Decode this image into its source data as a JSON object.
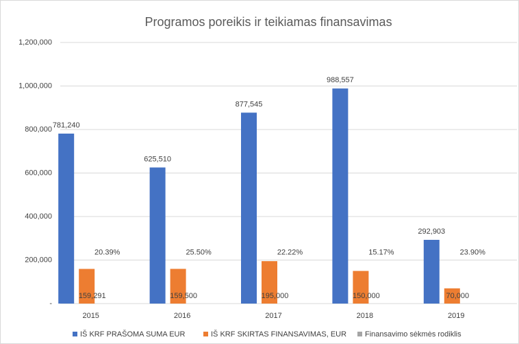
{
  "chart_data": {
    "type": "bar",
    "title": "Programos poreikis ir teikiamas finansavimas",
    "categories": [
      "2015",
      "2016",
      "2017",
      "2018",
      "2019"
    ],
    "series": [
      {
        "name": "IŠ KRF PRAŠOMA SUMA EUR",
        "color": "#4472c4",
        "values": [
          781240,
          625510,
          877545,
          988557,
          292903
        ],
        "value_labels": [
          "781,240",
          "625,510",
          "877,545",
          "988,557",
          "292,903"
        ]
      },
      {
        "name": "IŠ KRF SKIRTAS FINANSAVIMAS, EUR",
        "color": "#ed7d31",
        "values": [
          159291,
          159500,
          195000,
          150000,
          70000
        ],
        "value_labels": [
          "159,291",
          "159,500",
          "195,000",
          "150,000",
          "70,000"
        ]
      },
      {
        "name": "Finansavimo sėkmės rodiklis",
        "color": "#a5a5a5",
        "values": [
          20.39,
          25.5,
          22.22,
          15.17,
          23.9
        ],
        "value_labels": [
          "20.39%",
          "25.50%",
          "22.22%",
          "15.17%",
          "23.90%"
        ]
      }
    ],
    "ylim": [
      0,
      1200000
    ],
    "yticks": [
      {
        "value": 0,
        "label": "-"
      },
      {
        "value": 200000,
        "label": "200,000"
      },
      {
        "value": 400000,
        "label": "400,000"
      },
      {
        "value": 600000,
        "label": "600,000"
      },
      {
        "value": 800000,
        "label": "800,000"
      },
      {
        "value": 1000000,
        "label": "1,000,000"
      },
      {
        "value": 1200000,
        "label": "1,200,000"
      }
    ],
    "grid": true,
    "legend": "bottom"
  }
}
